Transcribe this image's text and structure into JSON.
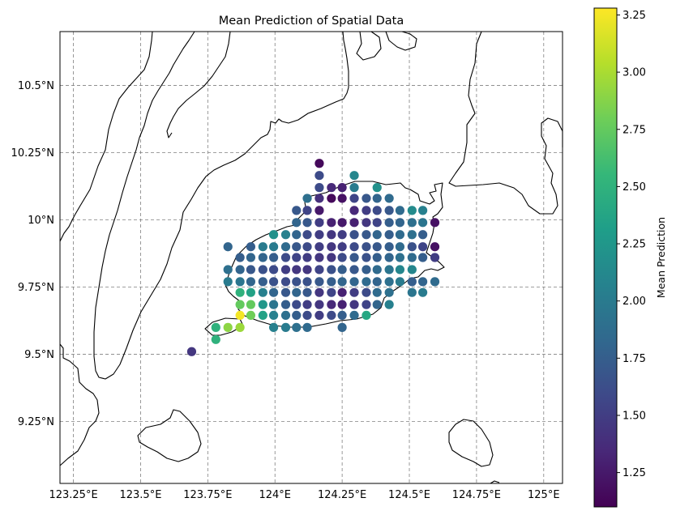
{
  "chart_data": {
    "type": "scatter",
    "title": "Mean Prediction of Spatial Data",
    "xlim": [
      123.2,
      125.07
    ],
    "ylim": [
      9.02,
      10.7
    ],
    "x_ticks": [
      {
        "v": 123.25,
        "label": "123.25°E"
      },
      {
        "v": 123.5,
        "label": "123.5°E"
      },
      {
        "v": 123.75,
        "label": "123.75°E"
      },
      {
        "v": 124.0,
        "label": "124°E"
      },
      {
        "v": 124.25,
        "label": "124.25°E"
      },
      {
        "v": 124.5,
        "label": "124.5°E"
      },
      {
        "v": 124.75,
        "label": "124.75°E"
      },
      {
        "v": 125.0,
        "label": "125°E"
      }
    ],
    "y_ticks": [
      {
        "v": 9.25,
        "label": "9.25°N"
      },
      {
        "v": 9.5,
        "label": "9.5°N"
      },
      {
        "v": 9.75,
        "label": "9.75°N"
      },
      {
        "v": 10.0,
        "label": "10°N"
      },
      {
        "v": 10.25,
        "label": "10.25°N"
      },
      {
        "v": 10.5,
        "label": "10.5°N"
      }
    ],
    "grid": true,
    "colorbar": {
      "label": "Mean Prediction",
      "range": [
        1.1,
        3.28
      ],
      "ticks": [
        {
          "v": 1.25,
          "label": "1.25"
        },
        {
          "v": 1.5,
          "label": "1.50"
        },
        {
          "v": 1.75,
          "label": "1.75"
        },
        {
          "v": 2.0,
          "label": "2.00"
        },
        {
          "v": 2.25,
          "label": "2.25"
        },
        {
          "v": 2.5,
          "label": "2.50"
        },
        {
          "v": 2.75,
          "label": "2.75"
        },
        {
          "v": 3.0,
          "label": "3.00"
        },
        {
          "v": 3.25,
          "label": "3.25"
        }
      ],
      "colormap": [
        "#440154",
        "#482878",
        "#3e4989",
        "#31688e",
        "#26828e",
        "#1f9e89",
        "#35b779",
        "#6ece58",
        "#b5de2b",
        "#fde725"
      ]
    },
    "coastline_color": "#000000",
    "grid_color": "#808080",
    "points": [
      [
        124.165,
        10.21,
        1.15
      ],
      [
        124.165,
        10.165,
        1.6
      ],
      [
        124.295,
        10.165,
        2.1
      ],
      [
        124.165,
        10.12,
        1.6
      ],
      [
        124.21,
        10.12,
        1.35
      ],
      [
        124.25,
        10.12,
        1.3
      ],
      [
        124.295,
        10.12,
        2.0
      ],
      [
        124.38,
        10.12,
        2.2
      ],
      [
        124.12,
        10.08,
        1.9
      ],
      [
        124.165,
        10.08,
        1.4
      ],
      [
        124.21,
        10.08,
        1.15
      ],
      [
        124.25,
        10.08,
        1.2
      ],
      [
        124.295,
        10.08,
        1.55
      ],
      [
        124.34,
        10.08,
        1.7
      ],
      [
        124.38,
        10.08,
        1.8
      ],
      [
        124.425,
        10.08,
        1.85
      ],
      [
        124.08,
        10.035,
        1.7
      ],
      [
        124.12,
        10.035,
        1.55
      ],
      [
        124.165,
        10.035,
        1.25
      ],
      [
        124.295,
        10.035,
        1.35
      ],
      [
        124.34,
        10.035,
        1.5
      ],
      [
        124.38,
        10.035,
        1.6
      ],
      [
        124.425,
        10.035,
        1.7
      ],
      [
        124.465,
        10.035,
        1.85
      ],
      [
        124.51,
        10.035,
        2.15
      ],
      [
        124.55,
        10.035,
        2.05
      ],
      [
        124.08,
        9.99,
        1.8
      ],
      [
        124.12,
        9.99,
        1.7
      ],
      [
        124.165,
        9.99,
        1.5
      ],
      [
        124.21,
        9.99,
        1.3
      ],
      [
        124.25,
        9.99,
        1.25
      ],
      [
        124.295,
        9.99,
        1.3
      ],
      [
        124.34,
        9.99,
        1.45
      ],
      [
        124.38,
        9.99,
        1.55
      ],
      [
        124.425,
        9.99,
        1.75
      ],
      [
        124.465,
        9.99,
        1.8
      ],
      [
        124.51,
        9.99,
        1.9
      ],
      [
        124.55,
        9.99,
        1.95
      ],
      [
        124.595,
        9.99,
        1.2
      ],
      [
        123.995,
        9.945,
        2.2
      ],
      [
        124.04,
        9.945,
        2.05
      ],
      [
        124.08,
        9.945,
        1.8
      ],
      [
        124.12,
        9.945,
        1.6
      ],
      [
        124.165,
        9.945,
        1.5
      ],
      [
        124.21,
        9.945,
        1.45
      ],
      [
        124.25,
        9.945,
        1.5
      ],
      [
        124.295,
        9.945,
        1.65
      ],
      [
        124.34,
        9.945,
        1.7
      ],
      [
        124.38,
        9.945,
        1.8
      ],
      [
        124.425,
        9.945,
        1.75
      ],
      [
        124.465,
        9.945,
        1.85
      ],
      [
        124.51,
        9.945,
        1.9
      ],
      [
        124.55,
        9.945,
        1.75
      ],
      [
        123.825,
        9.9,
        1.8
      ],
      [
        123.91,
        9.9,
        1.75
      ],
      [
        123.955,
        9.9,
        2.0
      ],
      [
        123.995,
        9.9,
        2.0
      ],
      [
        124.04,
        9.9,
        1.85
      ],
      [
        124.08,
        9.9,
        1.7
      ],
      [
        124.12,
        9.9,
        1.6
      ],
      [
        124.165,
        9.9,
        1.5
      ],
      [
        124.21,
        9.9,
        1.45
      ],
      [
        124.25,
        9.9,
        1.5
      ],
      [
        124.295,
        9.9,
        1.6
      ],
      [
        124.34,
        9.9,
        1.65
      ],
      [
        124.38,
        9.9,
        1.7
      ],
      [
        124.425,
        9.9,
        1.75
      ],
      [
        124.465,
        9.9,
        1.85
      ],
      [
        124.51,
        9.9,
        1.65
      ],
      [
        124.55,
        9.9,
        1.55
      ],
      [
        124.595,
        9.9,
        1.2
      ],
      [
        123.87,
        9.86,
        1.75
      ],
      [
        123.91,
        9.86,
        1.8
      ],
      [
        123.955,
        9.86,
        1.8
      ],
      [
        123.995,
        9.86,
        1.75
      ],
      [
        124.04,
        9.86,
        1.6
      ],
      [
        124.08,
        9.86,
        1.55
      ],
      [
        124.12,
        9.86,
        1.5
      ],
      [
        124.165,
        9.86,
        1.45
      ],
      [
        124.21,
        9.86,
        1.45
      ],
      [
        124.25,
        9.86,
        1.6
      ],
      [
        124.295,
        9.86,
        1.7
      ],
      [
        124.34,
        9.86,
        1.65
      ],
      [
        124.38,
        9.86,
        1.75
      ],
      [
        124.425,
        9.86,
        1.8
      ],
      [
        124.465,
        9.86,
        1.9
      ],
      [
        124.51,
        9.86,
        1.85
      ],
      [
        124.55,
        9.86,
        1.75
      ],
      [
        124.595,
        9.86,
        1.5
      ],
      [
        123.825,
        9.815,
        1.9
      ],
      [
        123.87,
        9.815,
        1.8
      ],
      [
        123.91,
        9.815,
        1.7
      ],
      [
        123.955,
        9.815,
        1.65
      ],
      [
        123.995,
        9.815,
        1.6
      ],
      [
        124.04,
        9.815,
        1.5
      ],
      [
        124.08,
        9.815,
        1.45
      ],
      [
        124.12,
        9.815,
        1.45
      ],
      [
        124.165,
        9.815,
        1.55
      ],
      [
        124.21,
        9.815,
        1.65
      ],
      [
        124.25,
        9.815,
        1.75
      ],
      [
        124.295,
        9.815,
        1.7
      ],
      [
        124.34,
        9.815,
        1.75
      ],
      [
        124.38,
        9.815,
        1.85
      ],
      [
        124.425,
        9.815,
        1.95
      ],
      [
        124.465,
        9.815,
        2.1
      ],
      [
        124.51,
        9.815,
        2.1
      ],
      [
        123.825,
        9.77,
        2.0
      ],
      [
        123.87,
        9.77,
        1.95
      ],
      [
        123.91,
        9.77,
        1.8
      ],
      [
        123.955,
        9.77,
        1.75
      ],
      [
        123.995,
        9.77,
        1.65
      ],
      [
        124.04,
        9.77,
        1.6
      ],
      [
        124.08,
        9.77,
        1.65
      ],
      [
        124.12,
        9.77,
        1.65
      ],
      [
        124.165,
        9.77,
        1.7
      ],
      [
        124.21,
        9.77,
        1.75
      ],
      [
        124.25,
        9.77,
        1.8
      ],
      [
        124.295,
        9.77,
        1.8
      ],
      [
        124.34,
        9.77,
        1.85
      ],
      [
        124.38,
        9.77,
        1.8
      ],
      [
        124.425,
        9.77,
        1.9
      ],
      [
        124.465,
        9.77,
        2.0
      ],
      [
        124.51,
        9.77,
        1.75
      ],
      [
        124.55,
        9.77,
        1.8
      ],
      [
        124.595,
        9.77,
        1.85
      ],
      [
        123.87,
        9.73,
        2.5
      ],
      [
        123.91,
        9.73,
        2.35
      ],
      [
        123.955,
        9.73,
        2.05
      ],
      [
        123.995,
        9.73,
        1.8
      ],
      [
        124.04,
        9.73,
        1.7
      ],
      [
        124.08,
        9.73,
        1.8
      ],
      [
        124.12,
        9.73,
        1.7
      ],
      [
        124.165,
        9.73,
        1.45
      ],
      [
        124.21,
        9.73,
        1.55
      ],
      [
        124.25,
        9.73,
        1.3
      ],
      [
        124.295,
        9.73,
        1.5
      ],
      [
        124.34,
        9.73,
        1.6
      ],
      [
        124.38,
        9.73,
        1.85
      ],
      [
        124.425,
        9.73,
        1.9
      ],
      [
        124.51,
        9.73,
        1.95
      ],
      [
        124.55,
        9.73,
        2.0
      ],
      [
        123.87,
        9.685,
        2.75
      ],
      [
        123.91,
        9.685,
        2.75
      ],
      [
        123.955,
        9.685,
        2.25
      ],
      [
        123.995,
        9.685,
        1.95
      ],
      [
        124.04,
        9.685,
        1.75
      ],
      [
        124.08,
        9.685,
        1.6
      ],
      [
        124.12,
        9.685,
        1.5
      ],
      [
        124.165,
        9.685,
        1.45
      ],
      [
        124.21,
        9.685,
        1.35
      ],
      [
        124.25,
        9.685,
        1.3
      ],
      [
        124.295,
        9.685,
        1.45
      ],
      [
        124.34,
        9.685,
        1.55
      ],
      [
        124.38,
        9.685,
        1.8
      ],
      [
        124.425,
        9.685,
        2.05
      ],
      [
        123.87,
        9.645,
        3.25
      ],
      [
        123.91,
        9.645,
        2.8
      ],
      [
        123.955,
        9.645,
        2.35
      ],
      [
        123.995,
        9.645,
        2.05
      ],
      [
        124.04,
        9.645,
        1.9
      ],
      [
        124.08,
        9.645,
        1.75
      ],
      [
        124.12,
        9.645,
        1.6
      ],
      [
        124.165,
        9.645,
        1.5
      ],
      [
        124.21,
        9.645,
        1.6
      ],
      [
        124.25,
        9.645,
        1.75
      ],
      [
        124.295,
        9.645,
        1.85
      ],
      [
        124.34,
        9.645,
        2.4
      ],
      [
        123.78,
        9.6,
        2.5
      ],
      [
        123.825,
        9.6,
        2.9
      ],
      [
        123.87,
        9.6,
        2.95
      ],
      [
        123.995,
        9.6,
        2.05
      ],
      [
        124.04,
        9.6,
        2.0
      ],
      [
        124.08,
        9.6,
        1.9
      ],
      [
        124.12,
        9.6,
        1.85
      ],
      [
        124.25,
        9.6,
        1.8
      ],
      [
        123.78,
        9.555,
        2.5
      ],
      [
        123.69,
        9.51,
        1.45
      ]
    ]
  }
}
